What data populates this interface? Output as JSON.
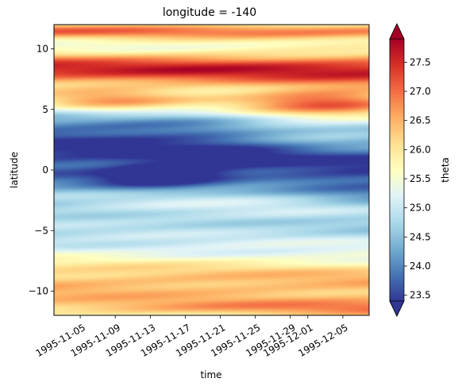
{
  "chart_data": {
    "type": "heatmap",
    "title": "longitude = -140",
    "xlabel": "time",
    "ylabel": "latitude",
    "colorbar_label": "theta",
    "colormap": "RdYlBu_r",
    "colormap_stops": [
      "#313695",
      "#4575b4",
      "#74add1",
      "#abd9e9",
      "#e0f3f8",
      "#ffffbf",
      "#fee090",
      "#fdae61",
      "#f46d43",
      "#d73027",
      "#a50026"
    ],
    "vmin": 23.4,
    "vmax": 27.9,
    "colorbar_extend": "both",
    "x_range": [
      "1995-11-02",
      "1995-12-08"
    ],
    "x_tick_dates": [
      "1995-11-05",
      "1995-11-09",
      "1995-11-13",
      "1995-11-17",
      "1995-11-21",
      "1995-11-25",
      "1995-11-29",
      "1995-12-01",
      "1995-12-05"
    ],
    "y_range": [
      -12,
      12
    ],
    "y_ticks": [
      10,
      5,
      0,
      -5,
      -10
    ],
    "y_tick_labels": [
      "10",
      "5",
      "0",
      "−5",
      "−10"
    ],
    "cbar_ticks": [
      23.5,
      24.0,
      24.5,
      25.0,
      25.5,
      26.0,
      26.5,
      27.0,
      27.5
    ],
    "cbar_tick_labels": [
      "23.5",
      "24.0",
      "24.5",
      "25.0",
      "25.5",
      "26.0",
      "26.5",
      "27.0",
      "27.5"
    ],
    "grid": false
  }
}
